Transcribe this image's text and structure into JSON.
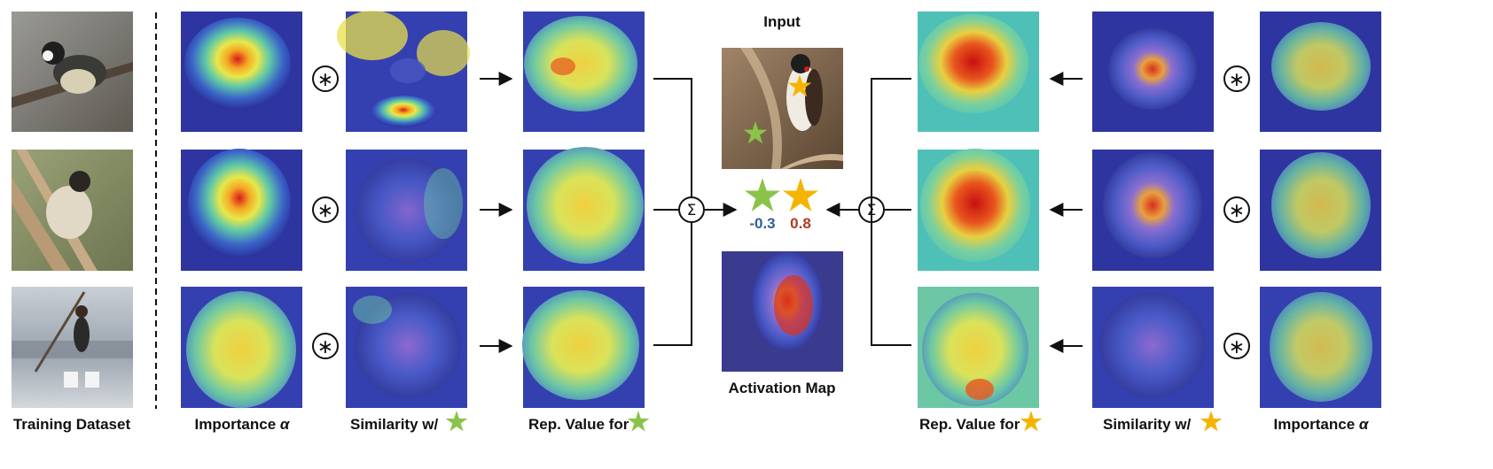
{
  "titles": {
    "input": "Input",
    "activation": "Activation Map"
  },
  "scores": {
    "green": "-0.3",
    "yellow": "0.8"
  },
  "column_labels": {
    "training": "Training Dataset",
    "importance_left": "Importance",
    "similarity_left": "Similarity w/",
    "rep_left": "Rep. Value for",
    "rep_right": "Rep. Value for",
    "similarity_right": "Similarity w/",
    "importance_right": "Importance",
    "alpha": "α"
  },
  "operators": {
    "convolve": "∗",
    "sum": "Σ"
  },
  "colors": {
    "green_star": "#8bc34a",
    "yellow_star": "#f4b400",
    "green_score": "#2f5fa0",
    "yellow_score": "#b03a1e"
  }
}
